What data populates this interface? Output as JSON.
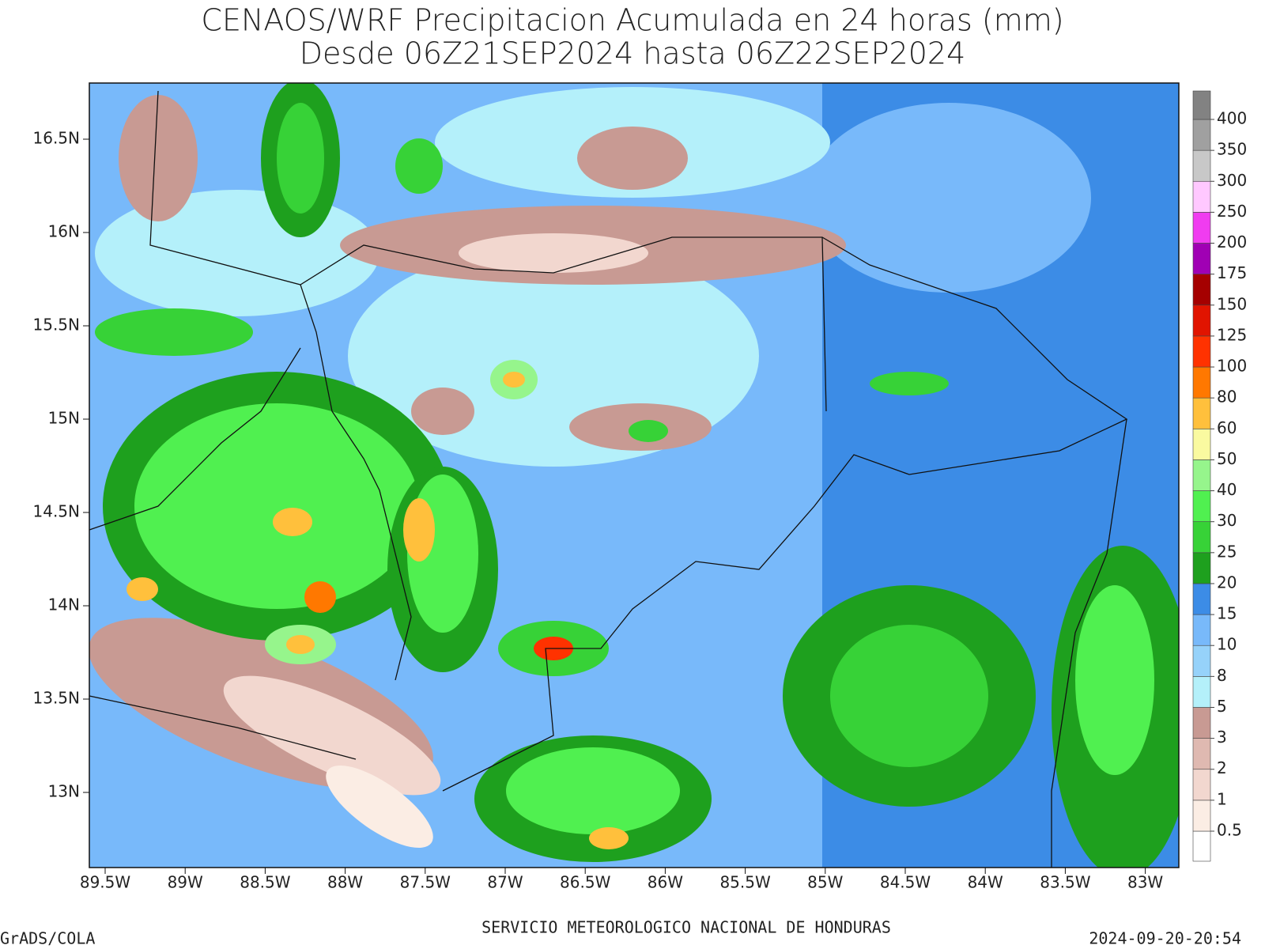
{
  "header": {
    "title": "CENAOS/WRF Precipitacion Acumulada en 24 horas (mm)",
    "subtitle": "Desde 06Z21SEP2024 hasta 06Z22SEP2024"
  },
  "map": {
    "lon_ticks": [
      "89.5W",
      "89W",
      "88.5W",
      "88W",
      "87.5W",
      "87W",
      "86.5W",
      "86W",
      "85.5W",
      "85W",
      "84.5W",
      "84W",
      "83.5W",
      "83W"
    ],
    "lat_ticks": [
      "16.5N",
      "16N",
      "15.5N",
      "15N",
      "14.5N",
      "14N",
      "13.5N",
      "13N"
    ]
  },
  "legend": {
    "levels": [
      0.5,
      1,
      2,
      3,
      5,
      8,
      10,
      15,
      20,
      25,
      30,
      40,
      50,
      60,
      80,
      100,
      125,
      150,
      175,
      200,
      250,
      300,
      350,
      400
    ],
    "colors": [
      "#ffffff",
      "#fbede4",
      "#f2d7cf",
      "#dfb9b1",
      "#c89a93",
      "#b4f0fa",
      "#96d2fa",
      "#78b9fa",
      "#3c8ce6",
      "#1ea01e",
      "#37d237",
      "#50f050",
      "#96f58c",
      "#fafaa0",
      "#ffc03c",
      "#ff7800",
      "#ff3200",
      "#e11400",
      "#a50000",
      "#a000b4",
      "#f03cf0",
      "#ffc8ff",
      "#c8c8c8",
      "#a0a0a0",
      "#828282"
    ]
  },
  "footer": {
    "left": "GrADS/COLA",
    "center": "SERVICIO METEOROLOGICO NACIONAL DE HONDURAS",
    "right": "2024-09-20-20:54"
  }
}
